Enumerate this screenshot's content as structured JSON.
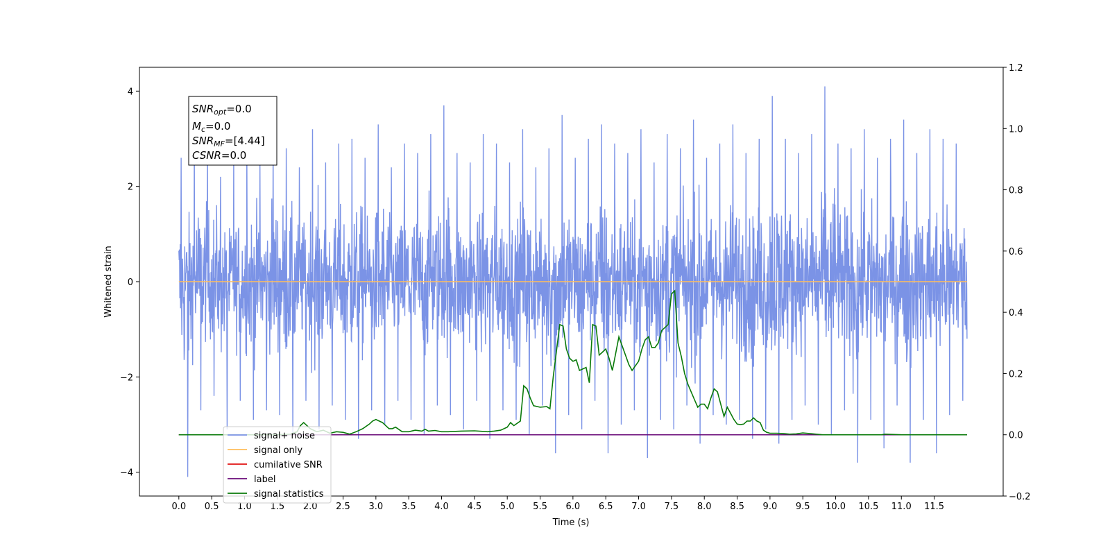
{
  "chart_data": {
    "type": "line",
    "xlabel": "Time (s)",
    "ylabel": "Whitened strain",
    "xlim": [
      -0.6,
      12.55
    ],
    "ylim": [
      -4.5,
      4.5
    ],
    "y2lim": [
      -0.2,
      1.2
    ],
    "xticks": [
      "0.0",
      "0.5",
      "1.0",
      "1.5",
      "2.0",
      "2.5",
      "3.0",
      "3.5",
      "4.0",
      "4.5",
      "5.0",
      "5.5",
      "6.0",
      "6.5",
      "7.0",
      "7.5",
      "8.0",
      "8.5",
      "9.0",
      "9.5",
      "10.0",
      "10.5",
      "11.0",
      "11.5"
    ],
    "yticks": [
      "4",
      "2",
      "0",
      "−2",
      "−4"
    ],
    "y2ticks": [
      "1.2",
      "1.0",
      "0.8",
      "0.6",
      "0.4",
      "0.2",
      "0.0",
      "−0.2"
    ],
    "grid": false,
    "legend_location": "lower-left",
    "annotation": {
      "snr_opt": {
        "sym": "SNR",
        "sub": "opt",
        "val": "=0.0"
      },
      "mc": {
        "sym": "M",
        "sub": "c",
        "val": "=0.0"
      },
      "snr_mf": {
        "sym": "SNR",
        "sub": "MF",
        "val": "=[4.44]"
      },
      "csnr": {
        "sym": "CSNR",
        "val": "=0.0"
      }
    },
    "series": [
      {
        "name": "signal+ noise",
        "color": "#7b93e6",
        "axis": "left",
        "description_x_range": [
          0.0,
          12.0
        ],
        "envelope_max_y": [
          2.6,
          3.3,
          3.0,
          2.2,
          2.6,
          2.9,
          2.5,
          3.3,
          2.8,
          2.4,
          3.2,
          2.5,
          2.9,
          3.0,
          2.6,
          3.3,
          2.4,
          2.9,
          2.7,
          3.1,
          3.7,
          2.7,
          2.5,
          3.1,
          2.9,
          2.5,
          3.2,
          2.4,
          2.8,
          3.5,
          2.6,
          3.0,
          3.3,
          2.9,
          2.7,
          3.2,
          2.5,
          3.1,
          2.8,
          3.4,
          2.6,
          2.9,
          3.3,
          2.7,
          3.0,
          3.9,
          3.0,
          2.7,
          3.1,
          4.1,
          2.9,
          2.8,
          3.2,
          2.6,
          3.0,
          3.4,
          2.7,
          3.2,
          3.0,
          2.9
        ],
        "envelope_min_y": [
          -4.1,
          -2.7,
          -2.4,
          -3.1,
          -2.5,
          -2.9,
          -2.7,
          -2.8,
          -3.2,
          -2.5,
          -3.1,
          -2.6,
          -2.9,
          -3.3,
          -2.7,
          -3.0,
          -2.5,
          -2.9,
          -3.2,
          -2.6,
          -2.8,
          -3.1,
          -2.5,
          -3.3,
          -2.7,
          -2.9,
          -3.2,
          -2.6,
          -3.6,
          -2.8,
          -3.1,
          -2.5,
          -3.6,
          -3.0,
          -2.7,
          -3.7,
          -2.9,
          -3.1,
          -2.6,
          -3.4,
          -2.8,
          -3.0,
          -2.9,
          -3.3,
          -3.1,
          -3.4,
          -2.9,
          -2.6,
          -3.0,
          -3.2,
          -2.7,
          -3.8,
          -2.9,
          -3.5,
          -2.6,
          -3.8,
          -2.9,
          -3.6,
          -2.8,
          -2.5
        ]
      },
      {
        "name": "signal only",
        "color": "#ffbe5c",
        "axis": "left",
        "x": [
          0.0,
          12.0
        ],
        "y": [
          0.0,
          0.0
        ]
      },
      {
        "name": "cumilative SNR",
        "color": "#e01010",
        "axis": "right",
        "x": [
          0.0,
          12.0
        ],
        "y": [
          0.0,
          0.0
        ]
      },
      {
        "name": "label",
        "color": "#6a0a78",
        "axis": "right",
        "x": [
          0.0,
          12.0
        ],
        "y": [
          0.0,
          0.0
        ]
      },
      {
        "name": "signal statistics",
        "color": "#0a7a0a",
        "axis": "right",
        "x": [
          0.0,
          0.5,
          1.0,
          1.5,
          1.7,
          1.8,
          1.85,
          1.9,
          2.0,
          2.1,
          2.2,
          2.3,
          2.4,
          2.5,
          2.6,
          2.7,
          2.8,
          2.9,
          2.95,
          3.0,
          3.1,
          3.2,
          3.25,
          3.3,
          3.4,
          3.5,
          3.6,
          3.7,
          3.75,
          3.8,
          3.9,
          4.0,
          4.1,
          4.3,
          4.5,
          4.7,
          4.8,
          4.9,
          5.0,
          5.05,
          5.1,
          5.2,
          5.25,
          5.3,
          5.35,
          5.4,
          5.5,
          5.6,
          5.65,
          5.7,
          5.8,
          5.85,
          5.9,
          5.95,
          6.0,
          6.05,
          6.1,
          6.2,
          6.25,
          6.3,
          6.35,
          6.4,
          6.45,
          6.5,
          6.55,
          6.6,
          6.7,
          6.8,
          6.85,
          6.9,
          7.0,
          7.05,
          7.1,
          7.15,
          7.2,
          7.25,
          7.3,
          7.35,
          7.4,
          7.45,
          7.5,
          7.55,
          7.6,
          7.65,
          7.7,
          7.75,
          7.8,
          7.85,
          7.9,
          7.95,
          8.0,
          8.05,
          8.1,
          8.15,
          8.2,
          8.25,
          8.3,
          8.35,
          8.4,
          8.45,
          8.5,
          8.55,
          8.6,
          8.65,
          8.7,
          8.75,
          8.8,
          8.85,
          8.9,
          8.95,
          9.0,
          9.1,
          9.2,
          9.3,
          9.4,
          9.5,
          9.6,
          9.7,
          9.8,
          10.0,
          10.5,
          10.7,
          10.75,
          11.0,
          11.5,
          12.0
        ],
        "y": [
          0.0,
          0.0,
          0.0,
          0.0,
          0.002,
          0.01,
          0.03,
          0.04,
          0.02,
          0.01,
          0.015,
          0.005,
          0.01,
          0.008,
          0.002,
          0.01,
          0.02,
          0.035,
          0.045,
          0.05,
          0.04,
          0.02,
          0.02,
          0.025,
          0.01,
          0.01,
          0.015,
          0.012,
          0.018,
          0.012,
          0.014,
          0.01,
          0.01,
          0.012,
          0.013,
          0.01,
          0.012,
          0.015,
          0.025,
          0.04,
          0.03,
          0.045,
          0.16,
          0.15,
          0.12,
          0.095,
          0.09,
          0.092,
          0.085,
          0.19,
          0.36,
          0.355,
          0.28,
          0.25,
          0.24,
          0.245,
          0.21,
          0.22,
          0.17,
          0.36,
          0.355,
          0.26,
          0.27,
          0.28,
          0.25,
          0.21,
          0.32,
          0.26,
          0.23,
          0.21,
          0.24,
          0.28,
          0.31,
          0.32,
          0.285,
          0.285,
          0.3,
          0.34,
          0.35,
          0.36,
          0.46,
          0.47,
          0.3,
          0.255,
          0.2,
          0.165,
          0.14,
          0.115,
          0.09,
          0.1,
          0.1,
          0.085,
          0.12,
          0.15,
          0.14,
          0.1,
          0.06,
          0.09,
          0.07,
          0.05,
          0.035,
          0.033,
          0.035,
          0.045,
          0.045,
          0.055,
          0.045,
          0.04,
          0.015,
          0.008,
          0.005,
          0.005,
          0.004,
          0.002,
          0.003,
          0.006,
          0.004,
          0.002,
          0.0,
          0.0,
          0.0,
          0.0,
          0.002,
          0.0,
          0.0,
          0.0
        ]
      }
    ]
  }
}
